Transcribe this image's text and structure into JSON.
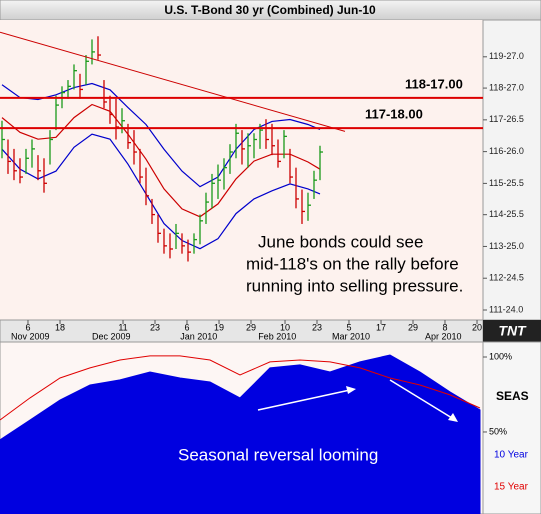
{
  "chart_data": [
    {
      "type": "ohlc",
      "title": "U.S. T-Bond 30 yr (Combined) Jun-10",
      "xlim": [
        -0.333,
        80.167
      ],
      "ylim": [
        111.43,
        121.02
      ],
      "yticks": [
        {
          "value": 119.84375,
          "label": "119-27.0"
        },
        {
          "value": 118.84375,
          "label": "118-27.0"
        },
        {
          "value": 117.828125,
          "label": "117-26.5"
        },
        {
          "value": 116.8125,
          "label": "116-26.0"
        },
        {
          "value": 115.796875,
          "label": "115-25.5"
        },
        {
          "value": 114.796875,
          "label": "114-25.5"
        },
        {
          "value": 113.78125,
          "label": "113-25.0"
        },
        {
          "value": 112.765625,
          "label": "112-24.5"
        },
        {
          "value": 111.75,
          "label": "111-24.0"
        }
      ],
      "xticks": [
        {
          "value": 4.33,
          "label": "6"
        },
        {
          "value": 9.67,
          "label": "18"
        },
        {
          "value": 20.17,
          "label": "11"
        },
        {
          "value": 25.5,
          "label": "23"
        },
        {
          "value": 30.83,
          "label": "6"
        },
        {
          "value": 36.17,
          "label": "19"
        },
        {
          "value": 41.5,
          "label": "29"
        },
        {
          "value": 47.17,
          "label": "10"
        },
        {
          "value": 52.5,
          "label": "23"
        },
        {
          "value": 57.83,
          "label": "5"
        },
        {
          "value": 63.17,
          "label": "17"
        },
        {
          "value": 68.5,
          "label": "29"
        },
        {
          "value": 73.83,
          "label": "8"
        },
        {
          "value": 79.17,
          "label": "20"
        }
      ],
      "month_labels": [
        {
          "value": 1.5,
          "label": "Nov 2009"
        },
        {
          "value": 15,
          "label": "Dec 2009"
        },
        {
          "value": 29.7,
          "label": "Jan 2010"
        },
        {
          "value": 42.7,
          "label": "Feb 2010"
        },
        {
          "value": 55,
          "label": "Mar 2010"
        },
        {
          "value": 70.5,
          "label": "Apr 2010"
        }
      ],
      "up_color": "#1a9a1a",
      "down_color": "#cc0000",
      "x": [
        0,
        1,
        2,
        3,
        4,
        5,
        6,
        7,
        8,
        9,
        10,
        11,
        12,
        13,
        14,
        15,
        16,
        17,
        18,
        19,
        20,
        21,
        22,
        23,
        24,
        25,
        26,
        27,
        28,
        29,
        30,
        31,
        32,
        33,
        34,
        35,
        36,
        37,
        38,
        39,
        40,
        41,
        42,
        43,
        44,
        45,
        46,
        47,
        48,
        49,
        50,
        51,
        52,
        53
      ],
      "high": [
        117.8,
        117.2,
        116.9,
        116.6,
        116.9,
        117.2,
        116.7,
        116.6,
        117.5,
        118.6,
        118.9,
        119.1,
        119.6,
        119.3,
        119.9,
        120.4,
        120.5,
        119.1,
        118.6,
        118.5,
        118.2,
        117.7,
        117.5,
        116.9,
        116.3,
        115.3,
        114.8,
        114.35,
        114.2,
        114.5,
        114.2,
        114.0,
        114.2,
        114.8,
        115.5,
        116.1,
        116.4,
        116.6,
        117.05,
        117.7,
        117.5,
        117.4,
        117.4,
        117.7,
        117.85,
        117.7,
        117.2,
        117.5,
        116.9,
        116.3,
        115.6,
        115.5,
        116.2,
        117.0
      ],
      "low": [
        116.6,
        116.1,
        115.9,
        115.8,
        116.1,
        116.3,
        115.9,
        115.5,
        116.4,
        117.5,
        118.2,
        118.5,
        118.8,
        118.5,
        118.95,
        119.6,
        119.75,
        118.2,
        117.7,
        117.2,
        117.4,
        116.9,
        116.4,
        115.8,
        115.1,
        114.5,
        113.9,
        113.55,
        113.4,
        113.7,
        113.55,
        113.3,
        113.55,
        113.85,
        114.5,
        115.0,
        115.3,
        115.6,
        116.1,
        116.6,
        116.4,
        116.3,
        116.6,
        116.9,
        116.9,
        116.7,
        116.3,
        116.6,
        115.8,
        115.0,
        114.5,
        114.6,
        115.3,
        115.9
      ],
      "close": [
        117.2,
        116.5,
        116.2,
        116.0,
        116.6,
        116.9,
        116.2,
        115.8,
        117.2,
        118.3,
        118.7,
        118.9,
        119.4,
        118.8,
        119.7,
        120.0,
        119.9,
        118.4,
        118.0,
        117.6,
        117.8,
        117.1,
        116.8,
        116.0,
        115.4,
        114.8,
        114.2,
        113.8,
        113.7,
        114.2,
        113.8,
        113.6,
        114.0,
        114.6,
        115.2,
        115.8,
        115.9,
        116.3,
        116.8,
        117.4,
        116.9,
        117.0,
        117.2,
        117.5,
        117.2,
        117.0,
        116.5,
        117.3,
        116.0,
        115.3,
        114.9,
        115.1,
        115.9,
        116.8
      ],
      "band_x": [
        0,
        3,
        6,
        9,
        12,
        15,
        18,
        21,
        24,
        27,
        30,
        33,
        36,
        39,
        42,
        45,
        48,
        51,
        53
      ],
      "bands": [
        {
          "color": "#0000cc",
          "values": [
            118.95,
            118.54,
            118.48,
            118.63,
            118.86,
            118.99,
            118.79,
            118.22,
            117.68,
            116.89,
            116.19,
            115.69,
            116.0,
            116.89,
            117.52,
            117.78,
            117.84,
            117.68,
            117.52
          ]
        },
        {
          "color": "#cc0000",
          "values": [
            117.9,
            117.43,
            117.21,
            117.27,
            117.9,
            118.32,
            118.1,
            117.37,
            116.57,
            115.62,
            114.98,
            114.73,
            115.14,
            115.94,
            116.51,
            116.73,
            116.73,
            116.48,
            116.25
          ]
        },
        {
          "color": "#0000cc",
          "values": [
            116.89,
            116.25,
            115.94,
            116.19,
            116.95,
            117.37,
            117.21,
            116.41,
            115.46,
            114.51,
            113.97,
            113.71,
            114.03,
            114.83,
            115.3,
            115.56,
            115.78,
            115.62,
            115.46
          ]
        }
      ],
      "trendline": {
        "color": "#cc0000",
        "x": [
          -0.333,
          57.17
        ],
        "values": [
          120.63,
          117.46
        ]
      },
      "levels": [
        {
          "value": 118.53125,
          "label": "118-17.00",
          "color": "#dd0000"
        },
        {
          "value": 117.5625,
          "label": "117-18.00",
          "color": "#dd0000"
        }
      ],
      "annotation": [
        "June bonds could see",
        "mid-118's on the rally before",
        "running into selling pressure."
      ],
      "logo": "TNT"
    },
    {
      "type": "area",
      "title": "SEAS",
      "xlim": [
        -0.333,
        80.167
      ],
      "ylim": [
        -4.7,
        110
      ],
      "yticks": [
        {
          "value": 100,
          "label": "100%"
        },
        {
          "value": 50,
          "label": "50%"
        }
      ],
      "x": [
        -0.33,
        4.67,
        9.67,
        14.67,
        19.67,
        24.67,
        29.67,
        34.67,
        39.67,
        44.67,
        49.67,
        54.67,
        59.67,
        64.67,
        69.67,
        74.67,
        79.67
      ],
      "series": [
        {
          "name": "10 Year",
          "color": "#0000e0",
          "values": [
            44.7,
            58.0,
            71.3,
            81.3,
            84.7,
            90.0,
            86.0,
            83.3,
            72.7,
            92.7,
            94.7,
            90.0,
            96.7,
            101.3,
            90.0,
            76.7,
            64.7
          ]
        },
        {
          "name": "15 Year",
          "color": "#e00000",
          "values": [
            58.0,
            72.7,
            86.0,
            92.7,
            98.0,
            100.7,
            100.7,
            98.0,
            88.0,
            96.7,
            98.0,
            96.7,
            92.7,
            86.0,
            81.3,
            74.7,
            66.0
          ]
        }
      ],
      "annotation": "Seasonal reversal looming"
    }
  ]
}
